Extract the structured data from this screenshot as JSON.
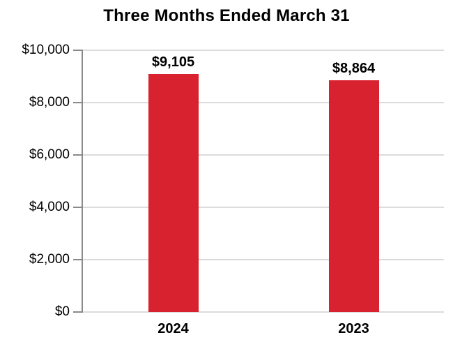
{
  "chart_data": {
    "type": "bar",
    "title": "Three Months Ended March 31",
    "xlabel": "",
    "ylabel": "",
    "categories": [
      "2024",
      "2023"
    ],
    "values": [
      9105,
      8864
    ],
    "value_labels": [
      "$9,105",
      "$8,864"
    ],
    "ylim": [
      0,
      10000
    ],
    "yticks": [
      {
        "value": 0,
        "label": "$0"
      },
      {
        "value": 2000,
        "label": "$2,000"
      },
      {
        "value": 4000,
        "label": "$4,000"
      },
      {
        "value": 6000,
        "label": "$6,000"
      },
      {
        "value": 8000,
        "label": "$8,000"
      },
      {
        "value": 10000,
        "label": "$10,000"
      }
    ],
    "grid": "horizontal",
    "legend": "none",
    "colors": {
      "bar": "#D9222F",
      "gridline": "#DCDCDC",
      "axis": "#8A8A8A",
      "text": "#000000",
      "background": "#FFFFFF"
    }
  }
}
